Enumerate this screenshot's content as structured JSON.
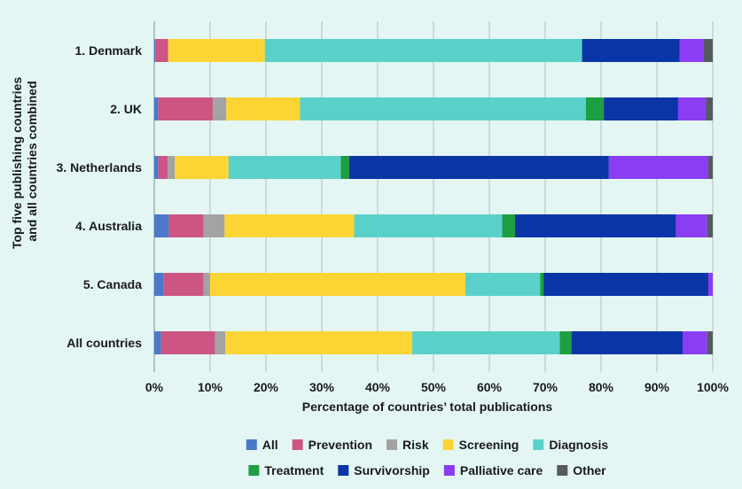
{
  "chart_data": {
    "type": "bar",
    "orientation": "horizontal",
    "stacked": true,
    "categories": [
      "1. Denmark",
      "2. UK",
      "3. Netherlands",
      "4. Australia",
      "5. Canada",
      "All countries"
    ],
    "series": [
      {
        "name": "All",
        "color": "#4b79c9",
        "values": [
          0.2,
          0.7,
          0.7,
          2.6,
          1.6,
          1.2
        ]
      },
      {
        "name": "Prevention",
        "color": "#cc5584",
        "values": [
          2.3,
          9.8,
          1.7,
          6.2,
          7.2,
          9.7
        ]
      },
      {
        "name": "Risk",
        "color": "#a3a3a3",
        "values": [
          0.0,
          2.4,
          1.3,
          3.8,
          1.2,
          1.8
        ]
      },
      {
        "name": "Screening",
        "color": "#fcd535",
        "values": [
          17.3,
          13.2,
          9.6,
          23.2,
          45.7,
          33.5
        ]
      },
      {
        "name": "Diagnosis",
        "color": "#5ad1c8",
        "values": [
          56.8,
          51.2,
          20.1,
          26.5,
          13.4,
          26.4
        ]
      },
      {
        "name": "Treatment",
        "color": "#1e9e42",
        "values": [
          0.0,
          3.2,
          1.5,
          2.3,
          0.6,
          2.1
        ]
      },
      {
        "name": "Survivorship",
        "color": "#0a35a6",
        "values": [
          17.5,
          13.3,
          46.5,
          28.8,
          29.5,
          19.9
        ]
      },
      {
        "name": "Palliative care",
        "color": "#8a3df2",
        "values": [
          4.3,
          5.0,
          17.8,
          5.6,
          1.0,
          4.4
        ]
      },
      {
        "name": "Other",
        "color": "#555a60",
        "values": [
          1.6,
          1.2,
          0.8,
          1.0,
          0.0,
          1.0
        ]
      }
    ],
    "xlim": [
      0,
      100
    ],
    "xticks": [
      "0%",
      "10%",
      "20%",
      "30%",
      "40%",
      "50%",
      "60%",
      "70%",
      "80%",
      "90%",
      "100%"
    ],
    "xlabel": "Percentage of countries’ total publications",
    "ylabel_lines": [
      "Top five publishing countries",
      "and all countries combined"
    ],
    "title": "",
    "grid": "vertical",
    "legend_position": "bottom"
  }
}
